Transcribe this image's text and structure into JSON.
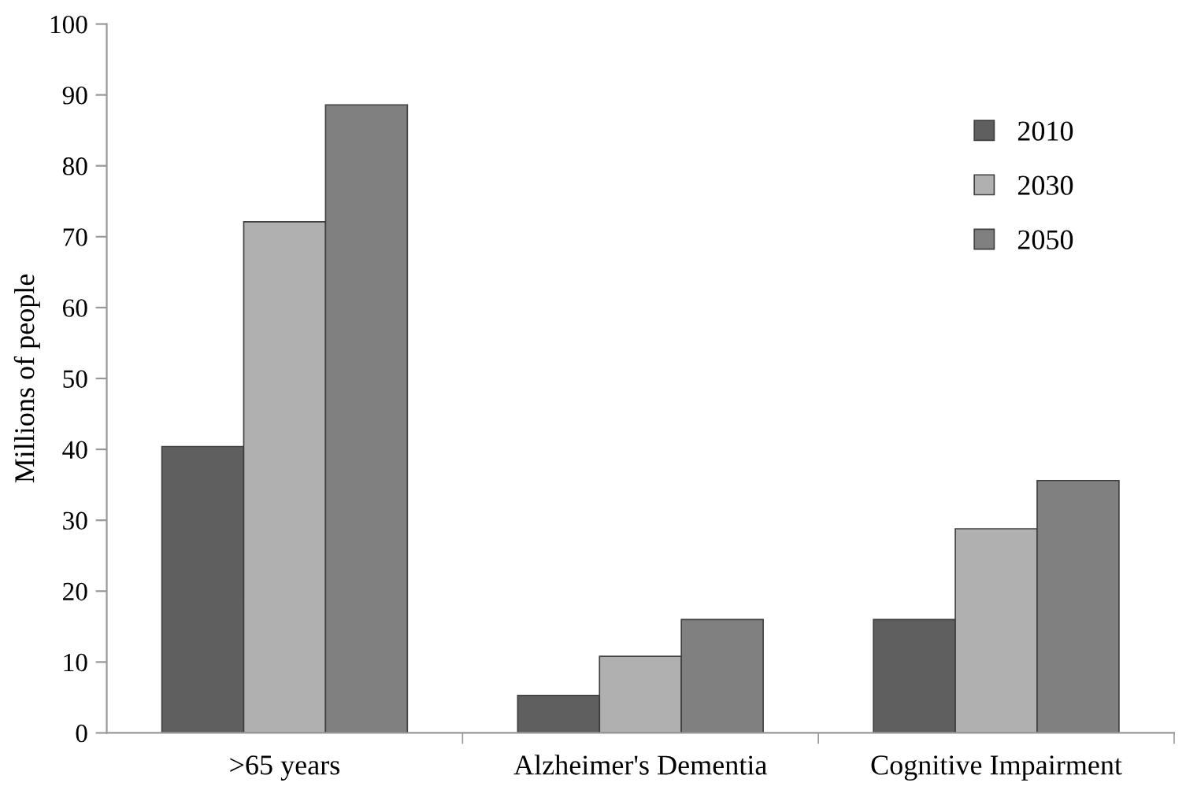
{
  "chart_data": {
    "type": "bar",
    "ylabel": "Millions of people",
    "categories": [
      ">65 years",
      "Alzheimer's Dementia",
      "Cognitive Impairment"
    ],
    "series": [
      {
        "name": "2010",
        "color": "#5f5f5f",
        "values": [
          40.4,
          5.3,
          16.0
        ]
      },
      {
        "name": "2030",
        "color": "#b0b0b0",
        "values": [
          72.1,
          10.8,
          28.8
        ]
      },
      {
        "name": "2050",
        "color": "#808080",
        "values": [
          88.6,
          16.0,
          35.6
        ]
      }
    ],
    "ylim": [
      0,
      100
    ],
    "yticks": [
      0,
      10,
      20,
      30,
      40,
      50,
      60,
      70,
      80,
      90,
      100
    ],
    "grid": false,
    "legend": "top right"
  }
}
